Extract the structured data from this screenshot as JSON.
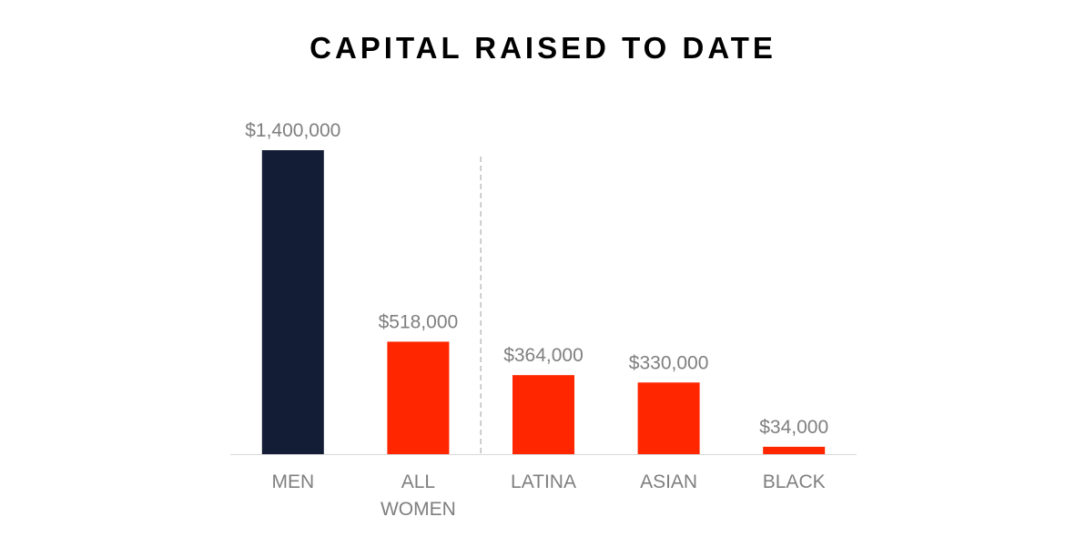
{
  "chart_data": {
    "type": "bar",
    "title": "CAPITAL RAISED TO DATE",
    "xlabel": "",
    "ylabel": "",
    "categories": [
      [
        "MEN"
      ],
      [
        "ALL",
        "WOMEN"
      ],
      [
        "LATINA"
      ],
      [
        "ASIAN"
      ],
      [
        "BLACK"
      ]
    ],
    "values": [
      1400000,
      518000,
      364000,
      330000,
      34000
    ],
    "value_labels": [
      "$1,400,000",
      "$518,000",
      "$364,000",
      "$330,000",
      "$34,000"
    ],
    "bar_colors": [
      "#131e36",
      "#ff2600",
      "#ff2600",
      "#ff2600",
      "#ff2600"
    ],
    "ylim": [
      0,
      1400000
    ],
    "grid": false,
    "legend": "none",
    "separator_after_category": 1,
    "label_color": "#7f7f7f",
    "axis_color": "#d9d9d9",
    "separator_color": "#bfbfbf"
  }
}
